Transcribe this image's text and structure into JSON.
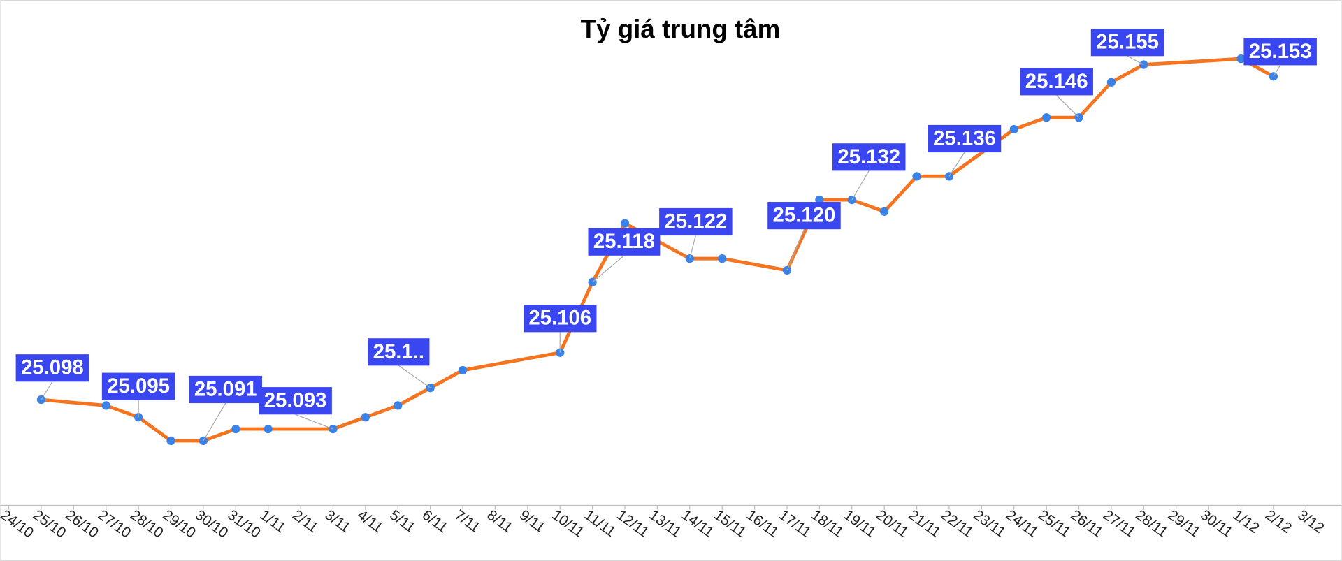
{
  "chart_data": {
    "type": "line",
    "title": "Tỷ giá trung tâm",
    "categories": [
      "24/10",
      "25/10",
      "26/10",
      "27/10",
      "28/10",
      "29/10",
      "30/10",
      "31/10",
      "1/11",
      "2/11",
      "3/11",
      "4/11",
      "5/11",
      "6/11",
      "7/11",
      "8/11",
      "9/11",
      "10/11",
      "11/11",
      "12/11",
      "13/11",
      "14/11",
      "15/11",
      "16/11",
      "17/11",
      "18/11",
      "19/11",
      "20/11",
      "21/11",
      "22/11",
      "23/11",
      "24/11",
      "25/11",
      "26/11",
      "27/11",
      "28/11",
      "29/11",
      "30/11",
      "1/12",
      "2/12",
      "3/12"
    ],
    "ylim": [
      25.08,
      25.166
    ],
    "series": [
      {
        "color": "#f5741f",
        "marker_color": "#3b82e6",
        "label_color": "#3a47f0",
        "x": [
          "25/10",
          "27/10",
          "28/10",
          "29/10",
          "30/10",
          "31/10",
          "1/11",
          "3/11",
          "4/11",
          "5/11",
          "6/11",
          "7/11",
          "10/11",
          "11/11",
          "12/11",
          "14/11",
          "15/11",
          "17/11",
          "18/11",
          "19/11",
          "20/11",
          "21/11",
          "22/11",
          "24/11",
          "25/11",
          "26/11",
          "27/11",
          "28/11",
          "1/12",
          "2/12"
        ],
        "values": [
          25.098,
          25.097,
          25.095,
          25.091,
          25.091,
          25.093,
          25.093,
          25.093,
          25.095,
          25.097,
          25.1,
          25.103,
          25.106,
          25.118,
          25.128,
          25.122,
          25.122,
          25.12,
          25.132,
          25.132,
          25.13,
          25.136,
          25.136,
          25.144,
          25.146,
          25.146,
          25.152,
          25.155,
          25.156,
          25.153
        ],
        "value_labels": [
          "25.098",
          null,
          "25.095",
          null,
          "25.091",
          null,
          null,
          "25.093",
          null,
          null,
          "25.1..",
          null,
          "25.106",
          "25.118",
          null,
          "25.122",
          null,
          "25.120",
          null,
          "25.132",
          null,
          null,
          "25.136",
          null,
          null,
          "25.146",
          null,
          "25.155",
          null,
          "25.153"
        ]
      }
    ]
  }
}
